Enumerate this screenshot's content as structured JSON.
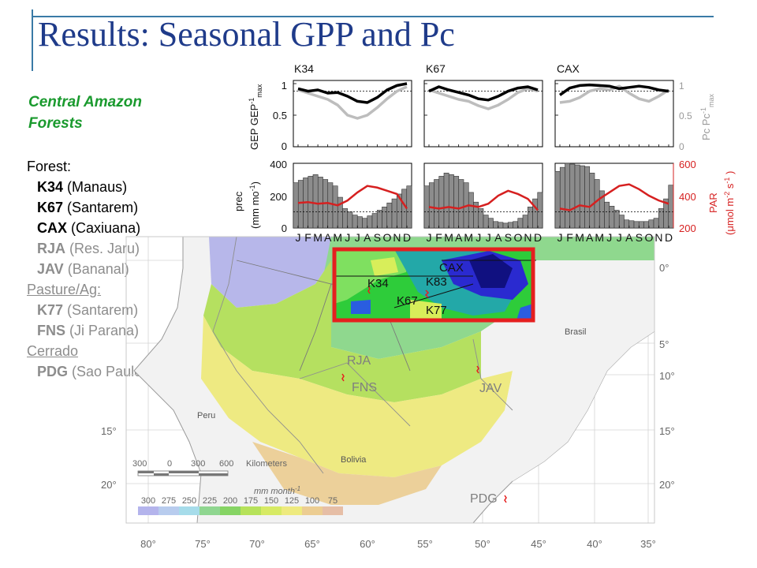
{
  "title": "Results: Seasonal GPP and Pc",
  "region": {
    "line1": "Central Amazon",
    "line2": "Forests"
  },
  "legend": {
    "forest_header": "Forest:",
    "forest_sites": [
      {
        "code": "K34",
        "name": "(Manaus)"
      },
      {
        "code": "K67",
        "name": "(Santarem)"
      },
      {
        "code": "CAX",
        "name": "(Caxiuana)"
      },
      {
        "code": "RJA",
        "name": "(Res. Jaru)"
      },
      {
        "code": "JAV",
        "name": "(Bananal)"
      }
    ],
    "pasture_header": "Pasture/Ag:",
    "pasture_sites": [
      {
        "code": "K77",
        "name": "(Santarem)"
      },
      {
        "code": "FNS",
        "name": "(Ji Parana)"
      }
    ],
    "cerrado_header": "Cerrado",
    "cerrado_sites": [
      {
        "code": "PDG",
        "name": "(Sao Paulo)"
      }
    ]
  },
  "chart_data": {
    "type": "line+bar",
    "panels": [
      "K34",
      "K67",
      "CAX"
    ],
    "month_ticks": [
      "J",
      "F",
      "M",
      "A",
      "M",
      "J",
      "J",
      "A",
      "S",
      "O",
      "N",
      "D"
    ],
    "top_row": {
      "ylabel_left": "GEP GEP",
      "ylabel_left_sup": "-1",
      "ylabel_left_sub": "max",
      "ylabel_right": "Pc Pc",
      "ylabel_right_sup": "-1",
      "ylabel_right_sub": "max",
      "yticks": [
        "0",
        "0.5",
        "1"
      ],
      "ylim": [
        0,
        1.05
      ],
      "dashed_ref": 0.88,
      "series": [
        {
          "color": "#000000",
          "values": {
            "K34": [
              0.92,
              0.88,
              0.9,
              0.85,
              0.86,
              0.8,
              0.72,
              0.7,
              0.78,
              0.9,
              0.97,
              1.0
            ],
            "K67": [
              0.88,
              0.95,
              0.9,
              0.86,
              0.82,
              0.76,
              0.74,
              0.8,
              0.88,
              0.93,
              0.95,
              0.9
            ],
            "CAX": [
              0.82,
              0.93,
              0.97,
              0.98,
              0.97,
              0.96,
              0.92,
              0.94,
              0.96,
              0.94,
              0.9,
              0.88
            ]
          }
        },
        {
          "color": "#bdbdbd",
          "values": {
            "K34": [
              0.9,
              0.85,
              0.8,
              0.75,
              0.66,
              0.5,
              0.45,
              0.5,
              0.62,
              0.76,
              0.88,
              0.95
            ],
            "K67": [
              0.9,
              0.85,
              0.8,
              0.75,
              0.72,
              0.65,
              0.6,
              0.66,
              0.75,
              0.86,
              0.92,
              0.88
            ],
            "CAX": [
              0.7,
              0.72,
              0.78,
              0.88,
              0.92,
              0.9,
              0.96,
              0.85,
              0.76,
              0.72,
              0.8,
              0.9
            ]
          }
        }
      ]
    },
    "bottom_row": {
      "ylabel_left": "prec",
      "ylabel_left2": "(mm mo",
      "ylabel_left2_sup": "-1",
      "ylabel_right": "PAR",
      "ylabel_right2": "(μmol m",
      "ylabel_right2_sup": "-2",
      "ylabel_right2_mid": " s",
      "ylabel_right2_sup2": "-1",
      "yticks_left": [
        "0",
        "200",
        "400"
      ],
      "yticks_right": [
        "200",
        "400",
        "600"
      ],
      "ylim_left": [
        0,
        400
      ],
      "ylim_right": [
        200,
        600
      ],
      "dashed_ref_left": 100,
      "precipitation": {
        "K34": [
          280,
          310,
          330,
          300,
          260,
          120,
          80,
          60,
          90,
          130,
          180,
          240
        ],
        "K67": [
          260,
          300,
          340,
          320,
          280,
          160,
          80,
          40,
          30,
          40,
          80,
          180
        ],
        "CAX": [
          350,
          400,
          390,
          380,
          300,
          160,
          110,
          50,
          40,
          40,
          60,
          180
        ]
      },
      "par": {
        "K34": [
          355,
          360,
          350,
          355,
          340,
          370,
          420,
          460,
          450,
          430,
          410,
          320
        ],
        "K67": [
          330,
          320,
          330,
          320,
          340,
          330,
          350,
          400,
          430,
          410,
          380,
          310
        ],
        "CAX": [
          320,
          310,
          340,
          330,
          380,
          420,
          460,
          470,
          440,
          400,
          370,
          350
        ]
      }
    }
  },
  "map": {
    "site_labels": {
      "CAX": "CAX",
      "K34": "K34",
      "K83": "K83",
      "K67": "K67",
      "K77": "K77",
      "RJA": "RJA",
      "FNS": "FNS",
      "JAV": "JAV",
      "PDG": "PDG"
    },
    "country_labels": [
      "Brasil",
      "Peru",
      "Bolivia"
    ],
    "lat_labels_right": [
      "0°",
      "5°",
      "10°",
      "15°",
      "20°"
    ],
    "lat_labels_left": [
      "15°",
      "20°"
    ],
    "lon_labels": [
      "80°",
      "75°",
      "70°",
      "65°",
      "60°",
      "55°",
      "50°",
      "45°",
      "40°",
      "35°"
    ],
    "scalebar": {
      "ticks": [
        "300",
        "0",
        "300",
        "600"
      ],
      "unit": "Kilometers"
    },
    "colorbar": {
      "unit": "mm month",
      "unit_sup": "-1",
      "labels": [
        "300",
        "275",
        "250",
        "225",
        "200",
        "175",
        "150",
        "125",
        "100",
        "75"
      ],
      "colors": [
        "#b4b4ec",
        "#b8ccee",
        "#a6dcea",
        "#8fd690",
        "#86d464",
        "#b6e25a",
        "#d7ea64",
        "#eeea7e",
        "#eccd92",
        "#e6bea6"
      ]
    },
    "highlight_color": "#e51f1f"
  }
}
